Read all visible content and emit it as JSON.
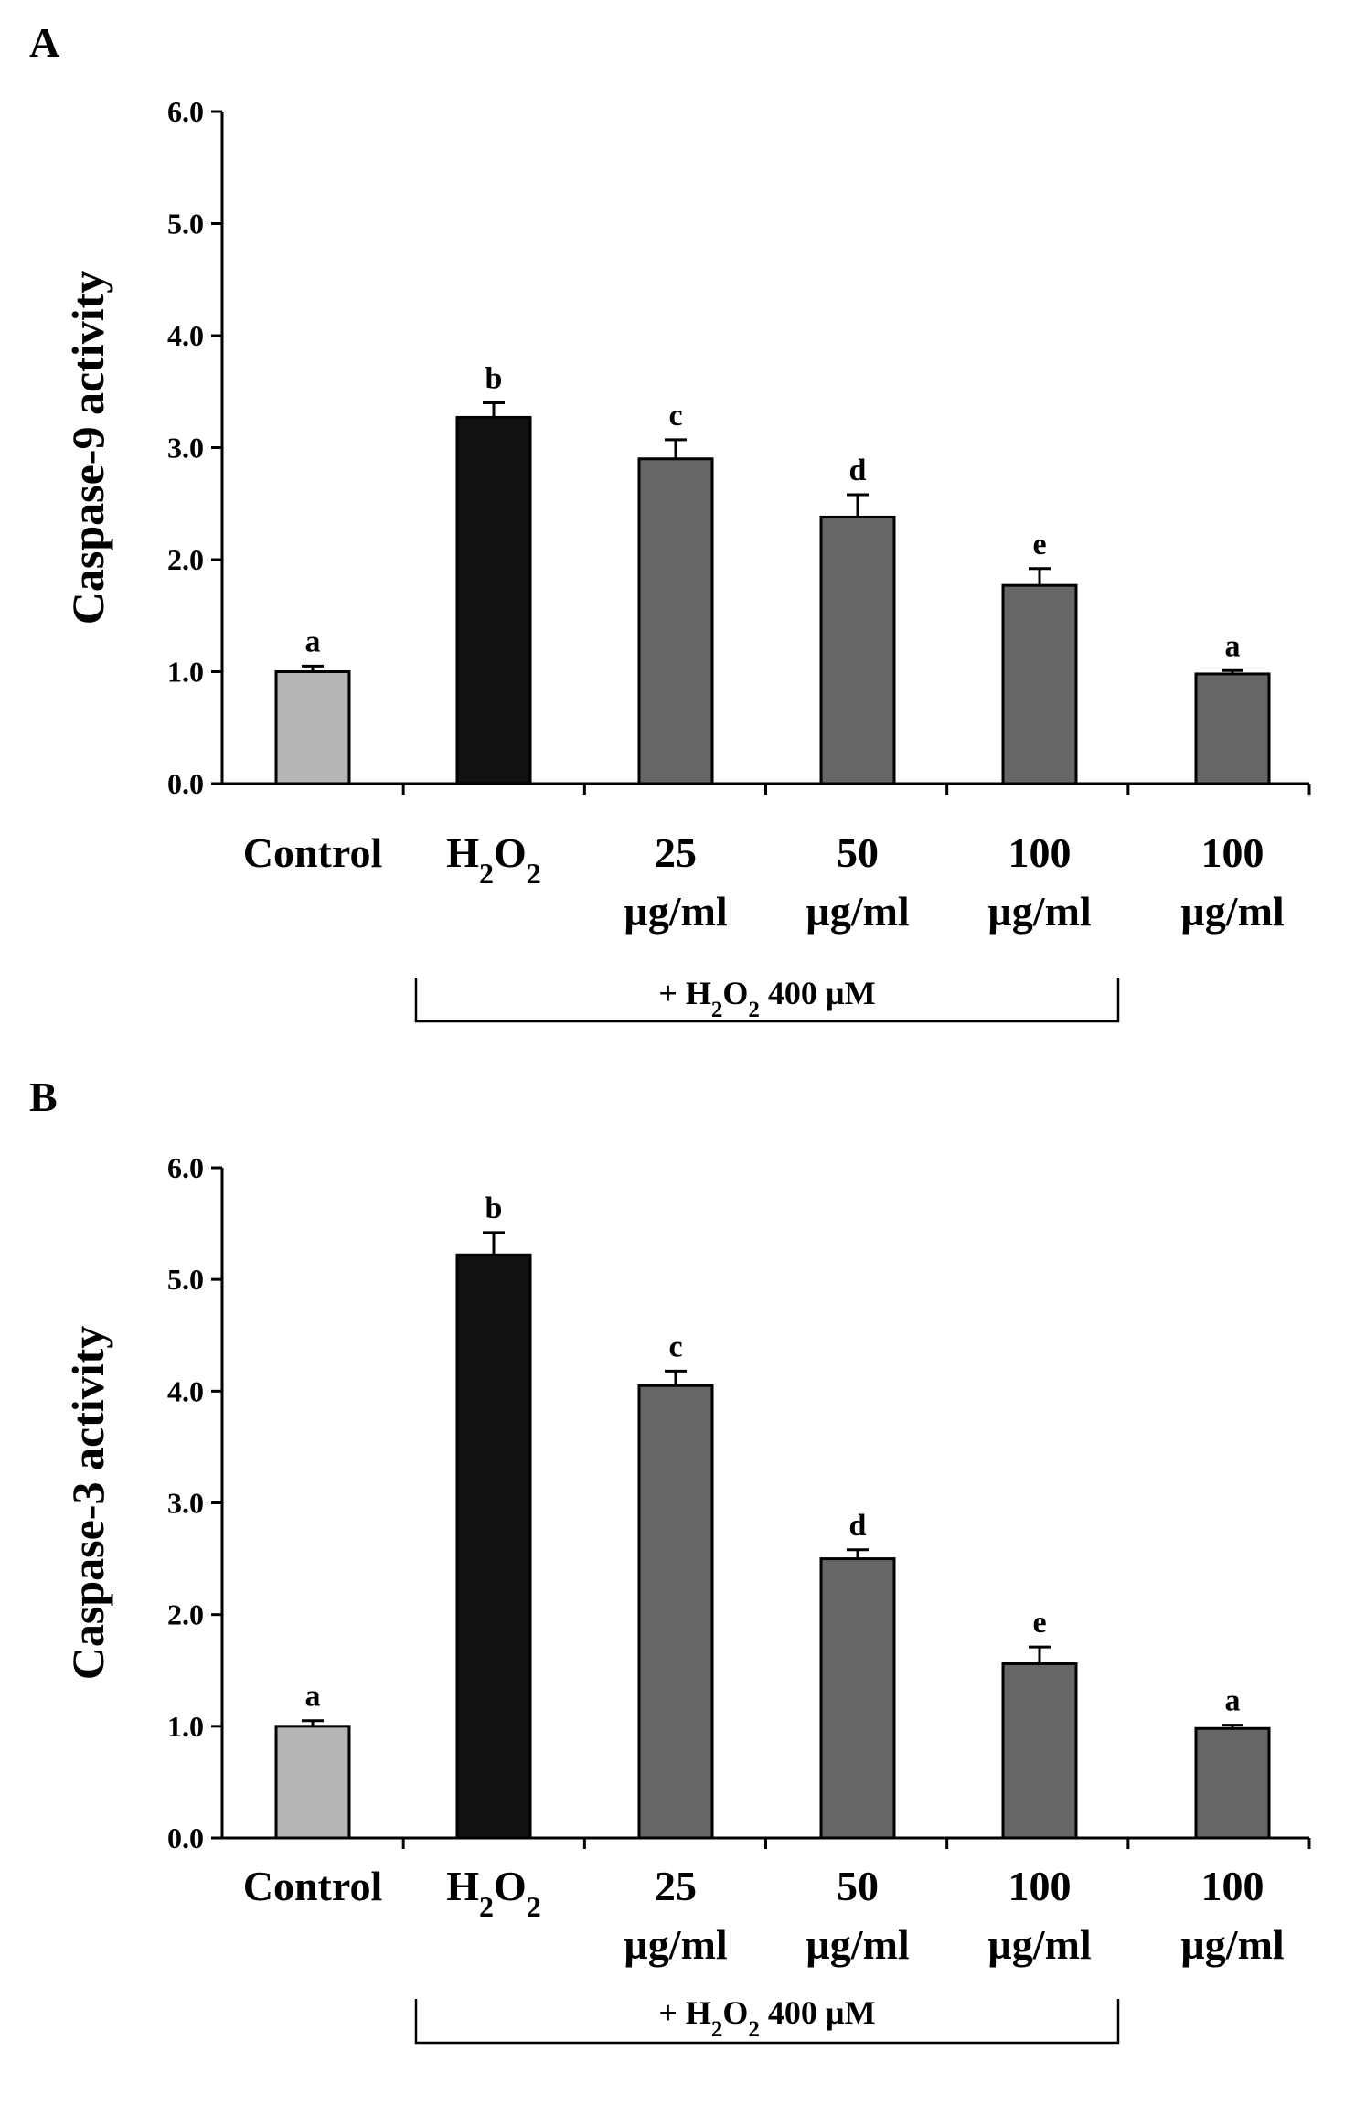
{
  "chart_data": [
    {
      "panel_label": "A",
      "type": "bar",
      "ylabel": "Caspase-9 activity",
      "ylim": [
        0,
        6
      ],
      "yticks": [
        "0.0",
        "1.0",
        "2.0",
        "3.0",
        "4.0",
        "5.0",
        "6.0"
      ],
      "categories": [
        {
          "line1": "Control",
          "line2": ""
        },
        {
          "line1": "H2O2",
          "line2": ""
        },
        {
          "line1": "25",
          "line2": "µg/ml"
        },
        {
          "line1": "50",
          "line2": "µg/ml"
        },
        {
          "line1": "100",
          "line2": "µg/ml"
        },
        {
          "line1": "100",
          "line2": "µg/ml"
        }
      ],
      "values": [
        1.0,
        3.27,
        2.9,
        2.38,
        1.77,
        0.98
      ],
      "errors": [
        0.05,
        0.13,
        0.17,
        0.2,
        0.15,
        0.03
      ],
      "significance": [
        "a",
        "b",
        "c",
        "d",
        "e",
        "a"
      ],
      "bar_colors": [
        "#b5b5b5",
        "#111111",
        "#666666",
        "#666666",
        "#666666",
        "#666666"
      ],
      "bracket_label": "+ H2O2 400 µM",
      "bracket_span": [
        1,
        4
      ]
    },
    {
      "panel_label": "B",
      "type": "bar",
      "ylabel": "Caspase-3 activity",
      "ylim": [
        0,
        6
      ],
      "yticks": [
        "0.0",
        "1.0",
        "2.0",
        "3.0",
        "4.0",
        "5.0",
        "6.0"
      ],
      "categories": [
        {
          "line1": "Control",
          "line2": ""
        },
        {
          "line1": "H2O2",
          "line2": ""
        },
        {
          "line1": "25",
          "line2": "µg/ml"
        },
        {
          "line1": "50",
          "line2": "µg/ml"
        },
        {
          "line1": "100",
          "line2": "µg/ml"
        },
        {
          "line1": "100",
          "line2": "µg/ml"
        }
      ],
      "values": [
        1.0,
        5.22,
        4.05,
        2.5,
        1.56,
        0.98
      ],
      "errors": [
        0.05,
        0.2,
        0.13,
        0.08,
        0.15,
        0.03
      ],
      "significance": [
        "a",
        "b",
        "c",
        "d",
        "e",
        "a"
      ],
      "bar_colors": [
        "#b5b5b5",
        "#111111",
        "#666666",
        "#666666",
        "#666666",
        "#666666"
      ],
      "bracket_label": "+ H2O2 400 µM",
      "bracket_span": [
        1,
        4
      ]
    }
  ]
}
